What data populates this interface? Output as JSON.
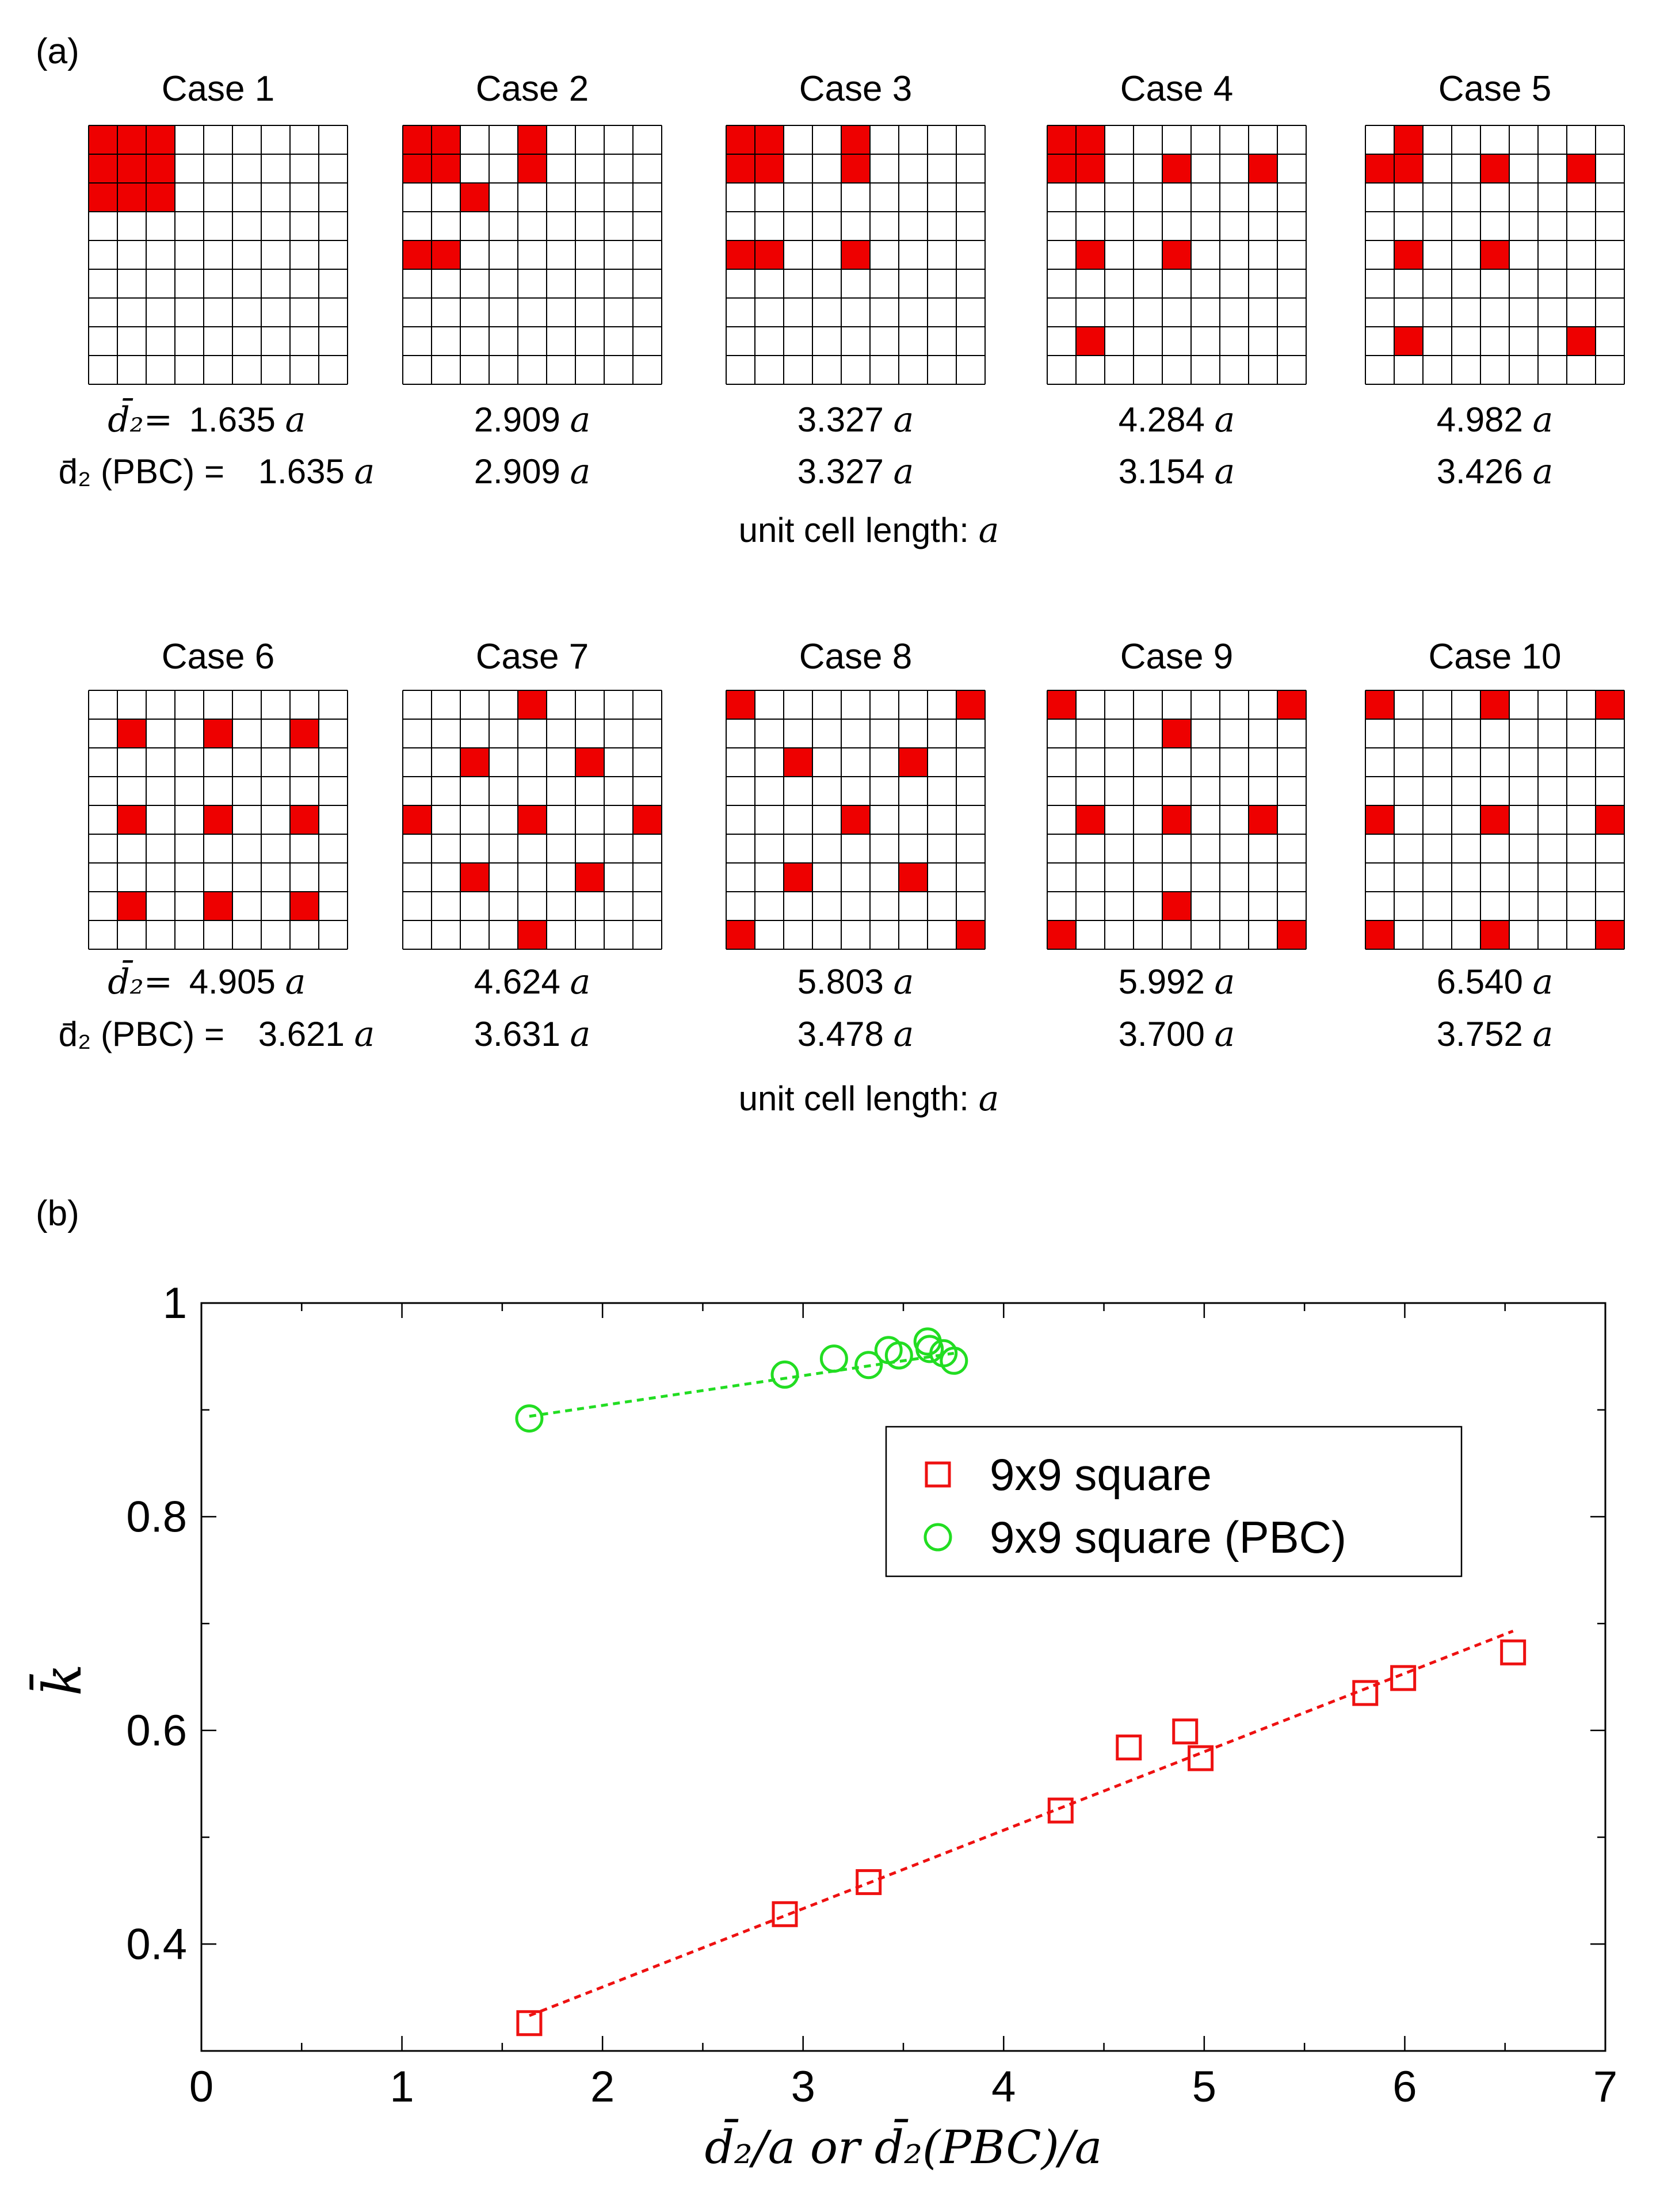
{
  "panel_a": {
    "label": "(a)",
    "grid_size": 9,
    "cases": [
      {
        "title": "Case 1",
        "d2": "1.635",
        "d2_pbc": "1.635",
        "cells": [
          [
            0,
            0
          ],
          [
            0,
            1
          ],
          [
            0,
            2
          ],
          [
            1,
            0
          ],
          [
            1,
            1
          ],
          [
            1,
            2
          ],
          [
            2,
            0
          ],
          [
            2,
            1
          ],
          [
            2,
            2
          ]
        ]
      },
      {
        "title": "Case 2",
        "d2": "2.909",
        "d2_pbc": "2.909",
        "cells": [
          [
            0,
            0
          ],
          [
            0,
            1
          ],
          [
            1,
            0
          ],
          [
            1,
            1
          ],
          [
            0,
            4
          ],
          [
            1,
            4
          ],
          [
            2,
            2
          ],
          [
            4,
            0
          ],
          [
            4,
            1
          ]
        ]
      },
      {
        "title": "Case 3",
        "d2": "3.327",
        "d2_pbc": "3.327",
        "cells": [
          [
            0,
            0
          ],
          [
            0,
            1
          ],
          [
            1,
            0
          ],
          [
            1,
            1
          ],
          [
            0,
            4
          ],
          [
            1,
            4
          ],
          [
            4,
            0
          ],
          [
            4,
            1
          ],
          [
            4,
            4
          ]
        ]
      },
      {
        "title": "Case 4",
        "d2": "4.284",
        "d2_pbc": "3.154",
        "cells": [
          [
            0,
            0
          ],
          [
            0,
            1
          ],
          [
            1,
            0
          ],
          [
            1,
            1
          ],
          [
            1,
            4
          ],
          [
            1,
            7
          ],
          [
            4,
            1
          ],
          [
            4,
            4
          ],
          [
            7,
            1
          ]
        ]
      },
      {
        "title": "Case 5",
        "d2": "4.982",
        "d2_pbc": "3.426",
        "cells": [
          [
            0,
            1
          ],
          [
            1,
            0
          ],
          [
            1,
            1
          ],
          [
            1,
            4
          ],
          [
            1,
            7
          ],
          [
            4,
            1
          ],
          [
            4,
            4
          ],
          [
            7,
            1
          ],
          [
            7,
            7
          ]
        ]
      },
      {
        "title": "Case 6",
        "d2": "4.905",
        "d2_pbc": "3.621",
        "cells": [
          [
            1,
            1
          ],
          [
            1,
            4
          ],
          [
            1,
            7
          ],
          [
            4,
            1
          ],
          [
            4,
            4
          ],
          [
            4,
            7
          ],
          [
            7,
            1
          ],
          [
            7,
            4
          ],
          [
            7,
            7
          ]
        ]
      },
      {
        "title": "Case 7",
        "d2": "4.624",
        "d2_pbc": "3.631",
        "cells": [
          [
            0,
            4
          ],
          [
            2,
            2
          ],
          [
            2,
            6
          ],
          [
            4,
            0
          ],
          [
            4,
            4
          ],
          [
            4,
            8
          ],
          [
            6,
            2
          ],
          [
            6,
            6
          ],
          [
            8,
            4
          ]
        ]
      },
      {
        "title": "Case 8",
        "d2": "5.803",
        "d2_pbc": "3.478",
        "cells": [
          [
            0,
            0
          ],
          [
            0,
            8
          ],
          [
            2,
            2
          ],
          [
            2,
            6
          ],
          [
            4,
            4
          ],
          [
            6,
            2
          ],
          [
            6,
            6
          ],
          [
            8,
            0
          ],
          [
            8,
            8
          ]
        ]
      },
      {
        "title": "Case 9",
        "d2": "5.992",
        "d2_pbc": "3.700",
        "cells": [
          [
            0,
            0
          ],
          [
            0,
            8
          ],
          [
            1,
            4
          ],
          [
            4,
            1
          ],
          [
            4,
            4
          ],
          [
            4,
            7
          ],
          [
            7,
            4
          ],
          [
            8,
            0
          ],
          [
            8,
            8
          ]
        ]
      },
      {
        "title": "Case 10",
        "d2": "6.540",
        "d2_pbc": "3.752",
        "cells": [
          [
            0,
            0
          ],
          [
            0,
            4
          ],
          [
            0,
            8
          ],
          [
            4,
            0
          ],
          [
            4,
            4
          ],
          [
            4,
            8
          ],
          [
            8,
            0
          ],
          [
            8,
            4
          ],
          [
            8,
            8
          ]
        ]
      }
    ],
    "row_label_d2": "d̄₂=",
    "row_label_d2_pbc": "d̄₂ (PBC) =",
    "unit_symbol": "a",
    "unit_caption": "unit cell length: ",
    "fill_color": "#ee0000"
  },
  "panel_b": {
    "label": "(b)"
  },
  "chart_data": {
    "type": "scatter",
    "title": "",
    "xlabel": "d̄₂/a  or  d̄₂(PBC)/a",
    "ylabel": "k̄",
    "xlim": [
      0,
      7
    ],
    "ylim": [
      0.3,
      1.0
    ],
    "xticks": [
      "0",
      "1",
      "2",
      "3",
      "4",
      "5",
      "6",
      "7"
    ],
    "yticks": [
      "0.4",
      "0.6",
      "0.8",
      "1"
    ],
    "legend_position": "upper-right",
    "series": [
      {
        "name": "9x9 square",
        "marker": "square",
        "color": "#ee1111",
        "x": [
          1.635,
          2.909,
          3.327,
          4.284,
          4.624,
          4.905,
          4.982,
          5.803,
          5.992,
          6.54
        ],
        "y": [
          0.326,
          0.428,
          0.458,
          0.525,
          0.584,
          0.599,
          0.574,
          0.635,
          0.649,
          0.673
        ],
        "fit": {
          "x": [
            1.635,
            6.54
          ],
          "y": [
            0.333,
            0.693
          ]
        }
      },
      {
        "name": "9x9 square (PBC)",
        "marker": "circle",
        "color": "#22dd22",
        "x": [
          1.635,
          2.909,
          3.327,
          3.154,
          3.426,
          3.621,
          3.631,
          3.478,
          3.7,
          3.752
        ],
        "y": [
          0.892,
          0.933,
          0.942,
          0.948,
          0.956,
          0.964,
          0.957,
          0.951,
          0.953,
          0.946
        ],
        "fit": {
          "x": [
            1.635,
            3.752
          ],
          "y": [
            0.894,
            0.953
          ]
        }
      }
    ]
  }
}
